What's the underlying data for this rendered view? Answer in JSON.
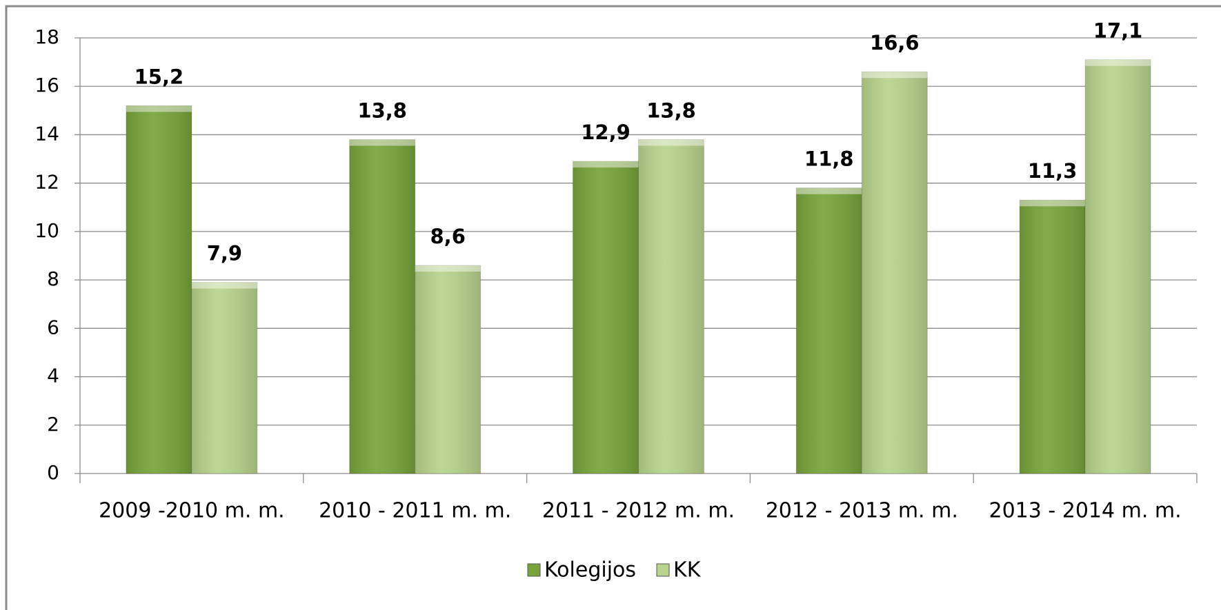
{
  "chart_data": {
    "type": "bar",
    "categories": [
      "2009 -2010 m. m.",
      "2010 - 2011 m. m.",
      "2011 - 2012 m. m.",
      "2012 - 2013 m. m.",
      "2013 - 2014 m. m."
    ],
    "series": [
      {
        "name": "Kolegijos",
        "color": "#77a33a",
        "values": [
          15.2,
          13.8,
          12.9,
          11.8,
          11.3
        ],
        "value_labels": [
          "15,2",
          "13,8",
          "12,9",
          "11,8",
          "11,3"
        ]
      },
      {
        "name": "KK",
        "color": "#b7d38c",
        "values": [
          7.9,
          8.6,
          13.8,
          16.6,
          17.1
        ],
        "value_labels": [
          "7,9",
          "8,6",
          "13,8",
          "16,6",
          "17,1"
        ]
      }
    ],
    "ylim": [
      0,
      18
    ],
    "yticks": [
      0,
      2,
      4,
      6,
      8,
      10,
      12,
      14,
      16,
      18
    ],
    "grid": true,
    "legend": "bottom"
  }
}
